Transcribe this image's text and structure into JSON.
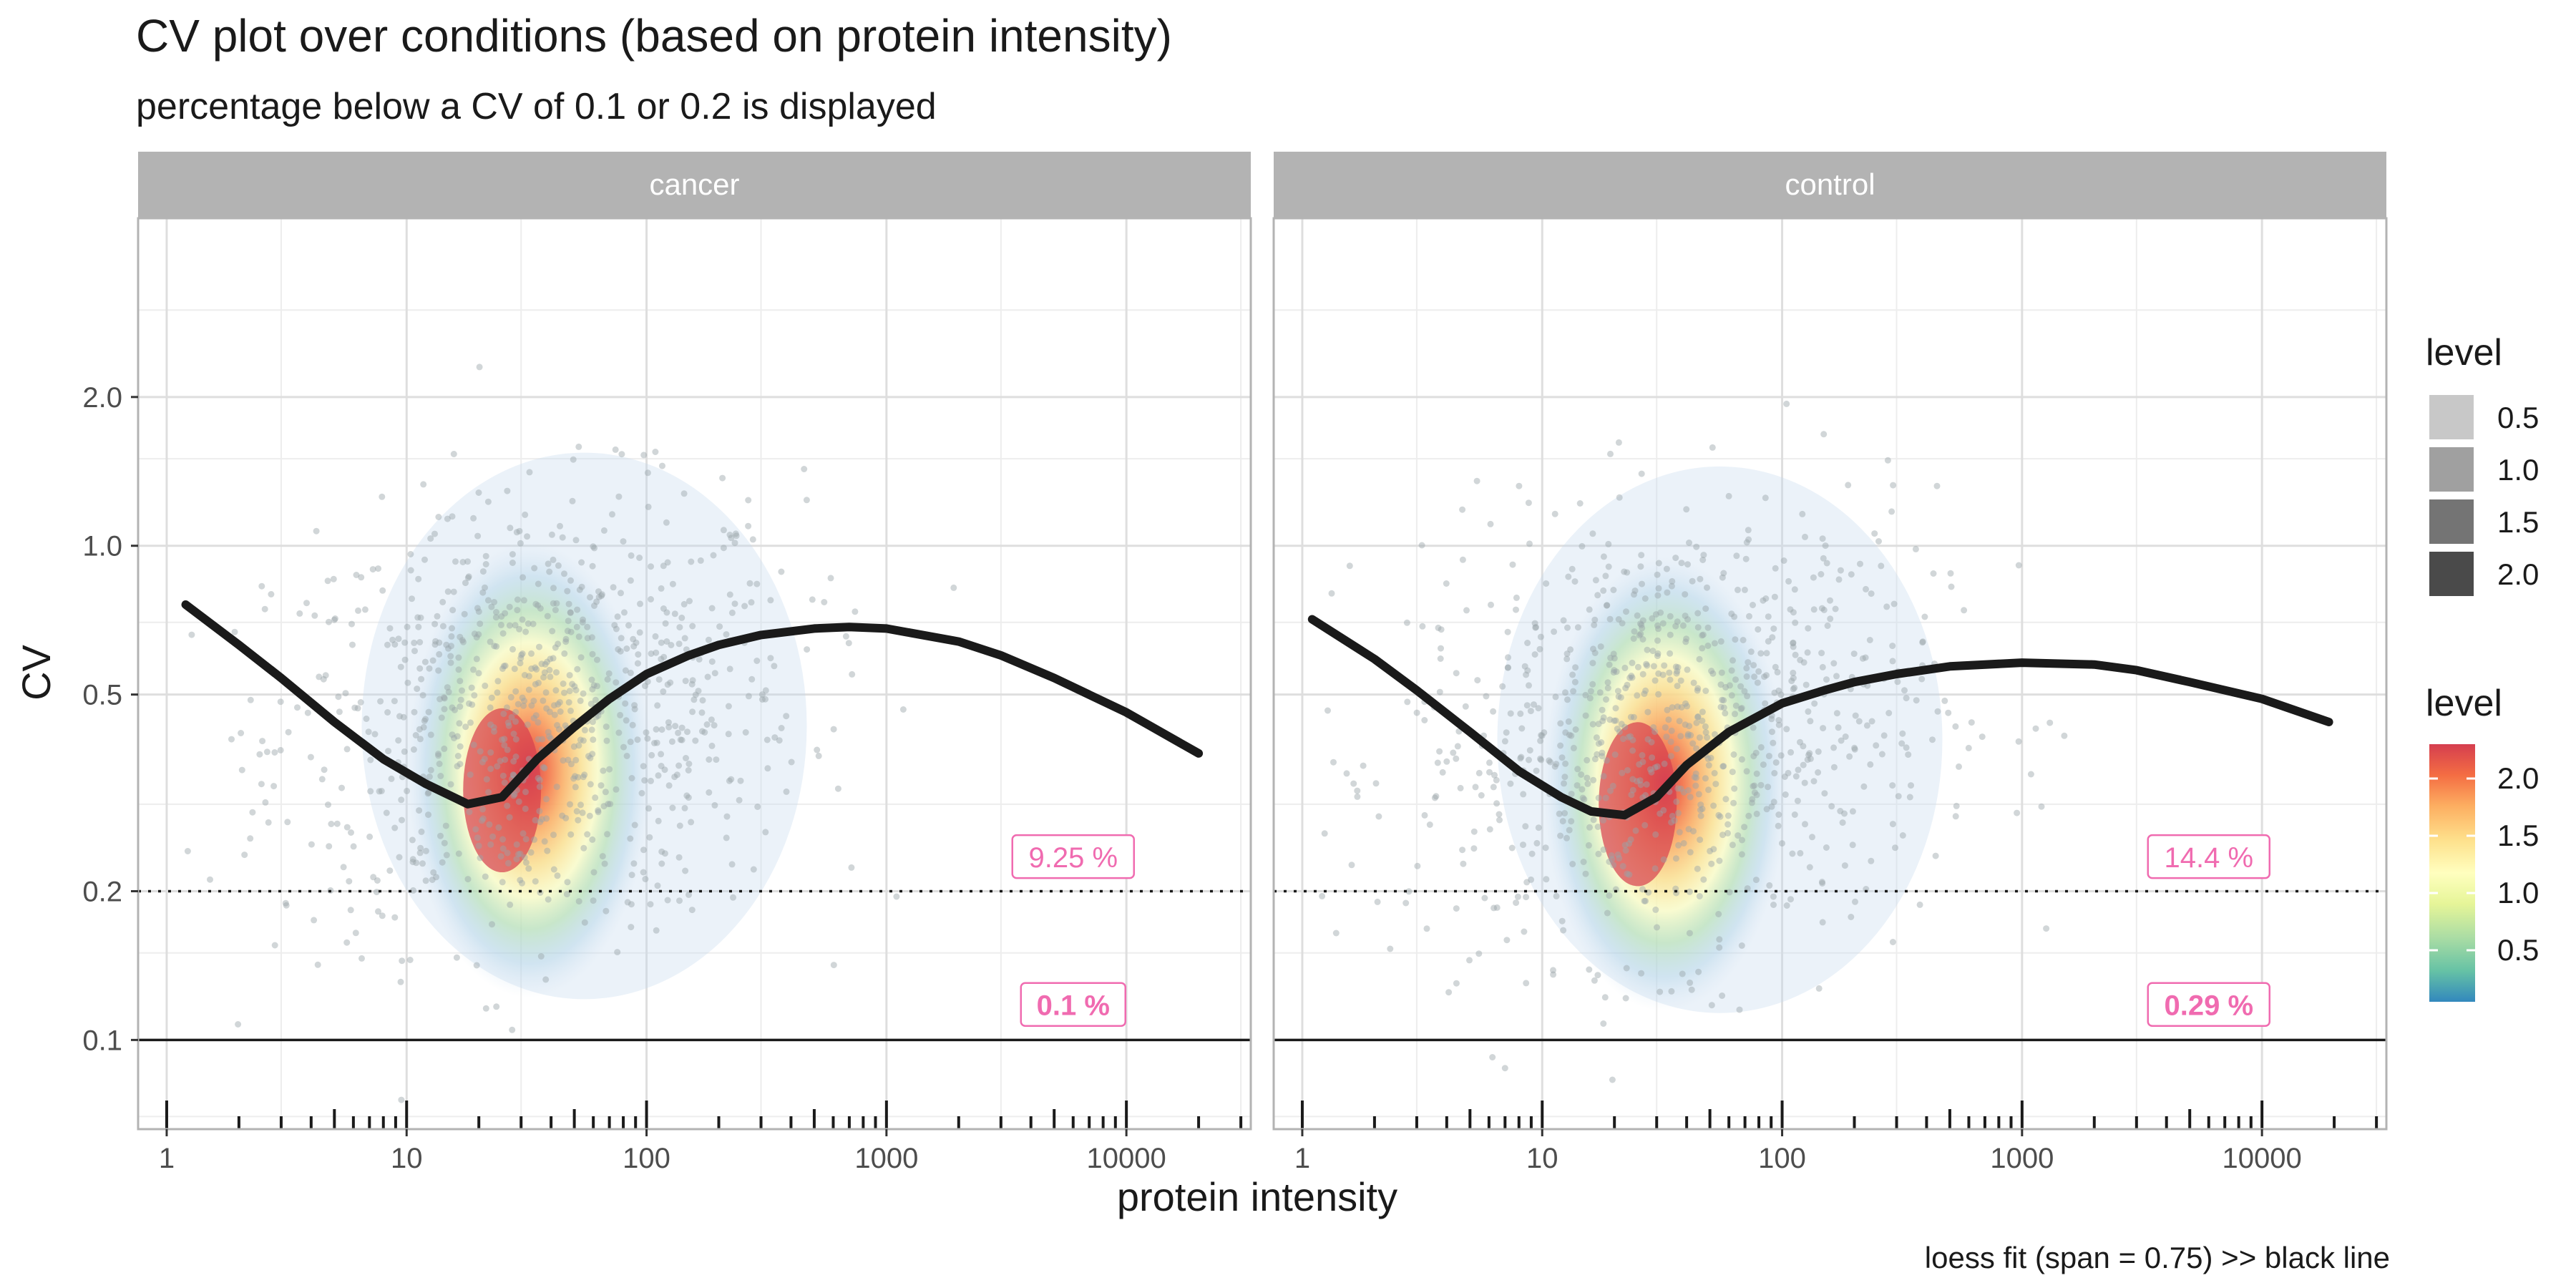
{
  "chart_data": {
    "type": "scatter",
    "title": "CV plot over conditions (based on protein intensity)",
    "subtitle": "percentage below a CV of 0.1 or 0.2 is displayed",
    "xlabel": "protein intensity",
    "ylabel": "CV",
    "caption": "loess fit (span = 0.75) >> black line",
    "x_scale": "log10",
    "y_scale": "log10",
    "xlim": [
      0.76,
      33000
    ],
    "ylim": [
      0.066,
      4.6
    ],
    "x_ticks": [
      1,
      10,
      100,
      1000,
      10000
    ],
    "x_tick_labels": [
      "1",
      "10",
      "100",
      "1000",
      "10000"
    ],
    "y_ticks": [
      0.1,
      0.2,
      0.5,
      1.0,
      2.0
    ],
    "y_tick_labels": [
      "0.1",
      "0.2",
      "0.5",
      "1.0",
      "2.0"
    ],
    "hlines": [
      {
        "y": 0.1,
        "style": "solid"
      },
      {
        "y": 0.2,
        "style": "dotted"
      }
    ],
    "grid": true,
    "accent_colors": {
      "annotation": "#f06bb0",
      "fit_line": "#1a1a1a",
      "strip": "#b3b3b3",
      "points": "#9aa3a8"
    },
    "panels": [
      {
        "strip": "cancer",
        "annotations": [
          {
            "label": "9.25 %",
            "x": 6000,
            "y": 0.235,
            "bold": false
          },
          {
            "label": "0.1 %",
            "x": 6000,
            "y": 0.118,
            "bold": true
          }
        ],
        "loess_fit": {
          "x": [
            1.2,
            2,
            3,
            5,
            8,
            12,
            18,
            25,
            35,
            50,
            70,
            100,
            150,
            200,
            300,
            500,
            700,
            1000,
            2000,
            3000,
            5000,
            10000,
            20000
          ],
          "y": [
            0.76,
            0.63,
            0.54,
            0.44,
            0.37,
            0.33,
            0.3,
            0.31,
            0.37,
            0.43,
            0.49,
            0.55,
            0.6,
            0.63,
            0.66,
            0.68,
            0.685,
            0.68,
            0.64,
            0.6,
            0.54,
            0.46,
            0.38
          ]
        },
        "density_peak": {
          "x": 25,
          "y": 0.32
        },
        "point_cloud": {
          "x_center": 35,
          "y_center": 0.45
        }
      },
      {
        "strip": "control",
        "annotations": [
          {
            "label": "14.4 %",
            "x": 6000,
            "y": 0.235,
            "bold": false
          },
          {
            "label": "0.29 %",
            "x": 6000,
            "y": 0.118,
            "bold": true
          }
        ],
        "loess_fit": {
          "x": [
            1.1,
            2,
            3,
            5,
            8,
            12,
            16,
            22,
            30,
            40,
            60,
            100,
            150,
            200,
            300,
            500,
            1000,
            2000,
            3000,
            5000,
            10000,
            19000
          ],
          "y": [
            0.71,
            0.59,
            0.51,
            0.42,
            0.35,
            0.31,
            0.29,
            0.285,
            0.31,
            0.36,
            0.42,
            0.48,
            0.51,
            0.53,
            0.55,
            0.57,
            0.58,
            0.575,
            0.56,
            0.53,
            0.49,
            0.44
          ]
        },
        "density_peak": {
          "x": 25,
          "y": 0.3
        },
        "point_cloud": {
          "x_center": 35,
          "y_center": 0.42
        }
      }
    ],
    "legends": [
      {
        "title": "level",
        "type": "alpha",
        "entries": [
          "0.5",
          "1.0",
          "1.5",
          "2.0"
        ],
        "colors": [
          "#c8c8c8",
          "#a0a0a0",
          "#747474",
          "#4a4a4a"
        ]
      },
      {
        "title": "level",
        "type": "colorbar",
        "ticks": [
          "2.0",
          "1.5",
          "1.0",
          "0.5"
        ],
        "tick_values": [
          2.0,
          1.5,
          1.0,
          0.5
        ],
        "range": [
          0.05,
          2.3
        ],
        "colors": [
          "#3288bd",
          "#66c2a5",
          "#abdda4",
          "#e6f598",
          "#ffffbf",
          "#fee08b",
          "#fdae61",
          "#f46d43",
          "#d53e4f"
        ]
      }
    ]
  }
}
